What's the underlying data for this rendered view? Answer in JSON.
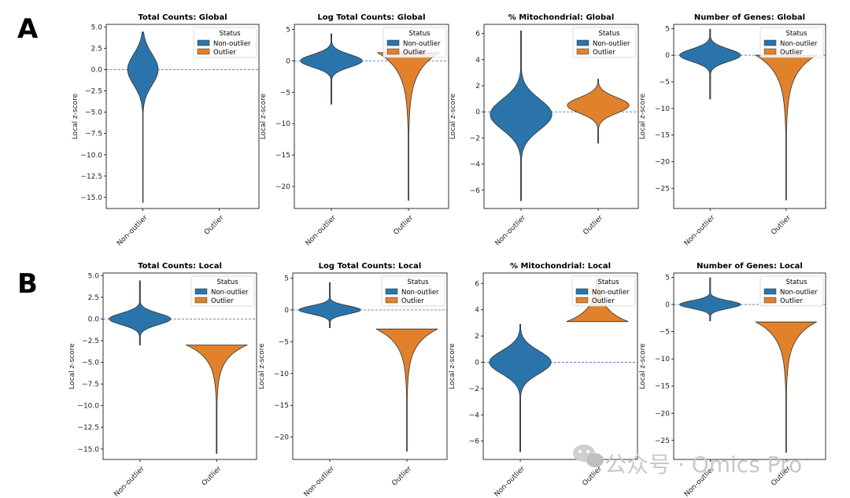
{
  "colors": {
    "non_outlier": "#2a74ab",
    "outlier": "#e2812c",
    "edge": "#333333",
    "refline": "#4a7fc2"
  },
  "watermark": {
    "text": "公众号 · Omics Pro",
    "icon": "wechat-icon"
  },
  "chart_data": [
    {
      "type": "violin",
      "panel": "A",
      "title": "Total Counts: Global",
      "ylabel": "Local z-score",
      "ylim": [
        -16.3,
        5.3
      ],
      "yticks": [
        5.0,
        2.5,
        0.0,
        -2.5,
        -5.0,
        -7.5,
        -10.0,
        -12.5,
        -15.0
      ],
      "yticklabels": [
        "5.0",
        "2.5",
        "0.0",
        "−2.5",
        "−5.0",
        "−7.5",
        "−10.0",
        "−12.5",
        "−15.0"
      ],
      "categories": [
        "Non-outlier",
        "Outlier"
      ],
      "legend_title": "Status",
      "legend_labels": [
        "Non-outlier",
        "Outlier"
      ],
      "violins": [
        {
          "category": "Non-outlier",
          "min": -15.6,
          "max": 4.4,
          "center": 0.0,
          "width": 0.4
        },
        null
      ]
    },
    {
      "type": "violin",
      "panel": "A",
      "title": "Log Total Counts: Global",
      "ylabel": "Local z-score",
      "ylim": [
        -23.5,
        5.8
      ],
      "yticks": [
        5,
        0,
        -5,
        -10,
        -15,
        -20
      ],
      "yticklabels": [
        "5",
        "0",
        "−5",
        "−10",
        "−15",
        "−20"
      ],
      "categories": [
        "Non-outlier",
        "Outlier"
      ],
      "legend_title": "Status",
      "legend_labels": [
        "Non-outlier",
        "Outlier"
      ],
      "violins": [
        {
          "category": "Non-outlier",
          "min": -6.9,
          "max": 4.3,
          "center": 0.0,
          "width": 0.8
        },
        {
          "category": "Outlier",
          "min": -22.2,
          "max": 1.3,
          "center": -1.0,
          "width": 0.8
        }
      ]
    },
    {
      "type": "violin",
      "panel": "A",
      "title": "% Mitochondrial: Global",
      "ylabel": "Local z-score",
      "ylim": [
        -7.4,
        6.7
      ],
      "yticks": [
        6,
        4,
        2,
        0,
        -2,
        -4,
        -6
      ],
      "yticklabels": [
        "6",
        "4",
        "2",
        "0",
        "−2",
        "−4",
        "−6"
      ],
      "categories": [
        "Non-outlier",
        "Outlier"
      ],
      "legend_title": "Status",
      "legend_labels": [
        "Non-outlier",
        "Outlier"
      ],
      "violins": [
        {
          "category": "Non-outlier",
          "min": -6.8,
          "max": 6.2,
          "center": -0.2,
          "width": 0.8
        },
        {
          "category": "Outlier",
          "min": -2.4,
          "max": 2.5,
          "center": 0.5,
          "width": 0.8
        }
      ]
    },
    {
      "type": "violin",
      "panel": "A",
      "title": "Number of Genes: Global",
      "ylabel": "Local z-score",
      "ylim": [
        -28.8,
        5.8
      ],
      "yticks": [
        5,
        0,
        -5,
        -10,
        -15,
        -20,
        -25
      ],
      "yticklabels": [
        "5",
        "0",
        "−5",
        "−10",
        "−15",
        "−20",
        "−25"
      ],
      "categories": [
        "Non-outlier",
        "Outlier"
      ],
      "legend_title": "Status",
      "legend_labels": [
        "Non-outlier",
        "Outlier"
      ],
      "violins": [
        {
          "category": "Non-outlier",
          "min": -8.2,
          "max": 4.9,
          "center": 0.0,
          "width": 0.8
        },
        {
          "category": "Outlier",
          "min": -27.2,
          "max": 0.0,
          "center": -1.2,
          "width": 0.8
        }
      ]
    },
    {
      "type": "violin",
      "panel": "B",
      "title": "Total Counts: Local",
      "ylabel": "Local z-score",
      "ylim": [
        -16.2,
        5.3
      ],
      "yticks": [
        5.0,
        2.5,
        0.0,
        -2.5,
        -5.0,
        -7.5,
        -10.0,
        -12.5,
        -15.0
      ],
      "yticklabels": [
        "5.0",
        "2.5",
        "0.0",
        "−2.5",
        "−5.0",
        "−7.5",
        "−10.0",
        "−12.5",
        "−15.0"
      ],
      "categories": [
        "Non-outlier",
        "Outlier"
      ],
      "legend_title": "Status",
      "legend_labels": [
        "Non-outlier",
        "Outlier"
      ],
      "violins": [
        {
          "category": "Non-outlier",
          "min": -3.0,
          "max": 4.4,
          "center": 0.0,
          "width": 0.8
        },
        {
          "category": "Outlier",
          "min": -15.5,
          "max": -3.0,
          "center": -3.6,
          "width": 0.8
        }
      ]
    },
    {
      "type": "violin",
      "panel": "B",
      "title": "Log Total Counts: Local",
      "ylabel": "Local z-score",
      "ylim": [
        -23.5,
        5.8
      ],
      "yticks": [
        5,
        0,
        -5,
        -10,
        -15,
        -20
      ],
      "yticklabels": [
        "5",
        "0",
        "−5",
        "−10",
        "−15",
        "−20"
      ],
      "categories": [
        "Non-outlier",
        "Outlier"
      ],
      "legend_title": "Status",
      "legend_labels": [
        "Non-outlier",
        "Outlier"
      ],
      "violins": [
        {
          "category": "Non-outlier",
          "min": -2.8,
          "max": 4.3,
          "center": 0.0,
          "width": 0.8
        },
        {
          "category": "Outlier",
          "min": -22.2,
          "max": -3.0,
          "center": -3.9,
          "width": 0.8
        }
      ]
    },
    {
      "type": "violin",
      "panel": "B",
      "title": "% Mitochondrial: Local",
      "ylabel": "Local z-score",
      "ylim": [
        -7.4,
        6.8
      ],
      "yticks": [
        6,
        4,
        2,
        0,
        -2,
        -4,
        -6
      ],
      "yticklabels": [
        "6",
        "4",
        "2",
        "0",
        "−2",
        "−4",
        "−6"
      ],
      "categories": [
        "Non-outlier",
        "Outlier"
      ],
      "legend_title": "Status",
      "legend_labels": [
        "Non-outlier",
        "Outlier"
      ],
      "violins": [
        {
          "category": "Non-outlier",
          "min": -6.8,
          "max": 2.9,
          "center": 0.0,
          "width": 0.8
        },
        {
          "category": "Outlier",
          "min": 3.1,
          "max": 6.3,
          "center": 3.5,
          "width": 0.8
        }
      ]
    },
    {
      "type": "violin",
      "panel": "B",
      "title": "Number of Genes: Local",
      "ylabel": "Local z-score",
      "ylim": [
        -28.5,
        5.8
      ],
      "yticks": [
        5,
        0,
        -5,
        -10,
        -15,
        -20,
        -25
      ],
      "yticklabels": [
        "5",
        "0",
        "−5",
        "−10",
        "−15",
        "−20",
        "−25"
      ],
      "categories": [
        "Non-outlier",
        "Outlier"
      ],
      "legend_title": "Status",
      "legend_labels": [
        "Non-outlier",
        "Outlier"
      ],
      "violins": [
        {
          "category": "Non-outlier",
          "min": -3.0,
          "max": 4.9,
          "center": 0.0,
          "width": 0.8
        },
        {
          "category": "Outlier",
          "min": -27.2,
          "max": -3.2,
          "center": -4.0,
          "width": 0.8
        }
      ]
    }
  ]
}
